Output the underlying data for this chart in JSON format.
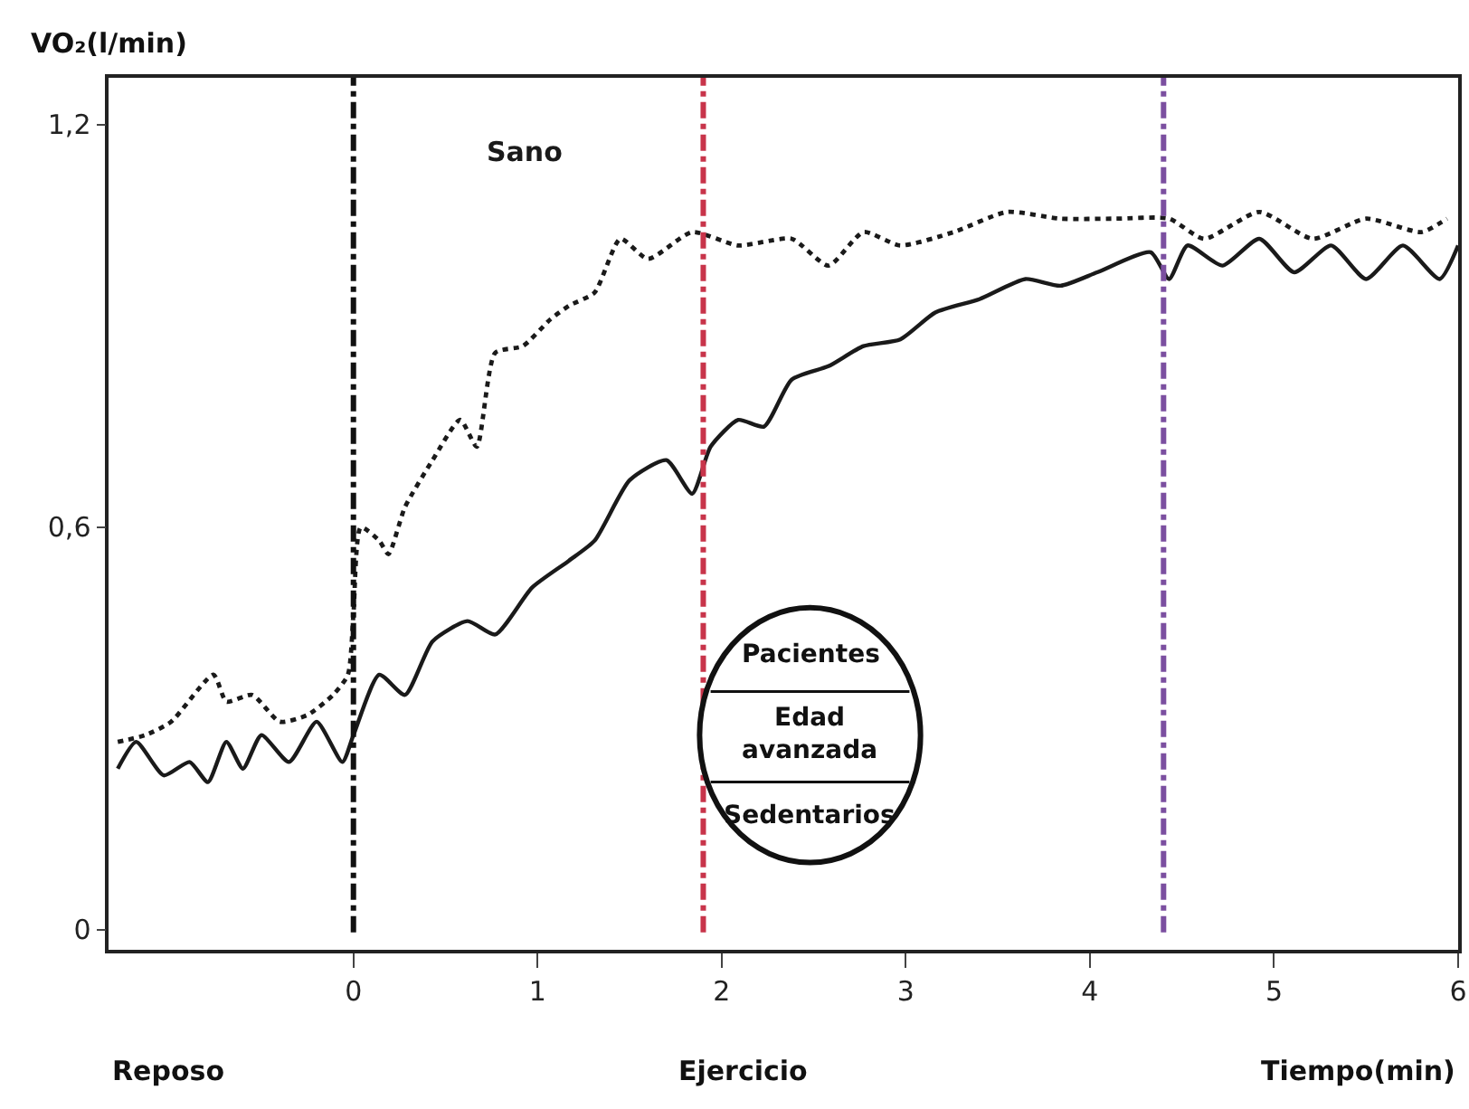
{
  "chart_data": {
    "type": "line",
    "ylabel": "VO₂(l/min)",
    "xlabel": "Tiempo(min)",
    "annotations": [
      "Reposo",
      "Ejercicio",
      "Pacientes",
      "Edad avanzada",
      "Sedentarios"
    ],
    "xlim": [
      -1.33,
      6.0
    ],
    "ylim": [
      -0.03,
      1.27
    ],
    "xticks": [
      0,
      1,
      2,
      3,
      4,
      5,
      6
    ],
    "yticks": [
      0,
      {
        "value": 0.6,
        "label": "0,6"
      },
      {
        "value": 1.2,
        "label": "1,2"
      }
    ],
    "legend": false,
    "marker": "none",
    "series": [
      {
        "name": "Sano",
        "color": "#1a1a1a",
        "line_style": "dotted",
        "x": [
          -1.28,
          -1.13,
          -0.99,
          -0.76,
          -0.69,
          -0.55,
          -0.4,
          -0.25,
          -0.11,
          -0.03,
          0,
          0.04,
          0.14,
          0.19,
          0.28,
          0.43,
          0.58,
          0.67,
          0.77,
          0.92,
          1.07,
          1.17,
          1.31,
          1.45,
          1.6,
          1.84,
          2.09,
          2.38,
          2.58,
          2.77,
          2.97,
          3.26,
          3.55,
          3.84,
          4.14,
          4.43,
          4.62,
          4.92,
          5.21,
          5.5,
          5.8,
          5.94
        ],
        "values": [
          0.28,
          0.29,
          0.31,
          0.38,
          0.34,
          0.35,
          0.31,
          0.32,
          0.35,
          0.38,
          0.47,
          0.6,
          0.58,
          0.56,
          0.63,
          0.7,
          0.76,
          0.72,
          0.86,
          0.87,
          0.91,
          0.93,
          0.95,
          1.03,
          1.0,
          1.04,
          1.02,
          1.03,
          0.99,
          1.04,
          1.02,
          1.04,
          1.07,
          1.06,
          1.06,
          1.06,
          1.03,
          1.07,
          1.03,
          1.06,
          1.04,
          1.06
        ]
      },
      {
        "color": "#1a1a1a",
        "line_style": "solid",
        "x": [
          -1.28,
          -1.18,
          -1.03,
          -0.89,
          -0.79,
          -0.69,
          -0.6,
          -0.5,
          -0.35,
          -0.2,
          -0.06,
          0,
          0.14,
          0.28,
          0.43,
          0.62,
          0.77,
          0.97,
          1.17,
          1.31,
          1.5,
          1.7,
          1.84,
          1.94,
          2.09,
          2.23,
          2.38,
          2.58,
          2.77,
          2.97,
          3.16,
          3.4,
          3.65,
          3.84,
          4.04,
          4.33,
          4.43,
          4.53,
          4.72,
          4.92,
          5.11,
          5.31,
          5.5,
          5.7,
          5.9,
          6.0
        ],
        "values": [
          0.24,
          0.28,
          0.23,
          0.25,
          0.22,
          0.28,
          0.24,
          0.29,
          0.25,
          0.31,
          0.25,
          0.29,
          0.38,
          0.35,
          0.43,
          0.46,
          0.44,
          0.51,
          0.55,
          0.58,
          0.67,
          0.7,
          0.65,
          0.72,
          0.76,
          0.75,
          0.82,
          0.84,
          0.87,
          0.88,
          0.92,
          0.94,
          0.97,
          0.96,
          0.98,
          1.01,
          0.97,
          1.02,
          0.99,
          1.03,
          0.98,
          1.02,
          0.97,
          1.02,
          0.97,
          1.02
        ]
      }
    ],
    "ref_lines": [
      {
        "axis": "x",
        "value": 0,
        "color": "#111111",
        "line_style": "dashdot"
      },
      {
        "axis": "x",
        "value": 1.9,
        "color": "#c8344a",
        "line_style": "dashdot"
      },
      {
        "axis": "x",
        "value": 4.4,
        "color": "#7b4fa0",
        "line_style": "dashdot"
      }
    ]
  }
}
